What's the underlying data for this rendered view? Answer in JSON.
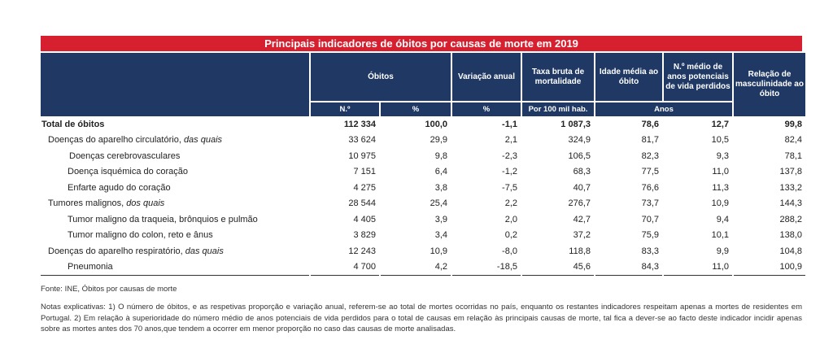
{
  "title": "Principais indicadores de óbitos por causas de morte em 2019",
  "headers": {
    "obitos": "Óbitos",
    "variacao": "Variação anual",
    "taxa": "Taxa bruta de mortalidade",
    "idade": "Idade média ao óbito",
    "anos": "N.º médio de anos potenciais de vida perdidos",
    "relacao": "Relação de masculinidade ao óbito"
  },
  "subheaders": {
    "n": "N.º",
    "pct1": "%",
    "pct2": "%",
    "per100": "Por 100 mil hab.",
    "anos": "Anos"
  },
  "rows": [
    {
      "label": "Total de óbitos",
      "italic": "",
      "n": "112 334",
      "pct": "100,0",
      "var": "-1,1",
      "taxa": "1 087,3",
      "idade": "78,6",
      "anos": "12,7",
      "rel": "99,8"
    },
    {
      "label": "Doenças do aparelho circulatório, ",
      "italic": "das quais",
      "n": "33 624",
      "pct": "29,9",
      "var": "2,1",
      "taxa": "324,9",
      "idade": "81,7",
      "anos": "10,5",
      "rel": "82,4"
    },
    {
      "label": "Doenças cerebrovasculares",
      "italic": "",
      "n": "10 975",
      "pct": "9,8",
      "var": "-2,3",
      "taxa": "106,5",
      "idade": "82,3",
      "anos": "9,3",
      "rel": "78,1"
    },
    {
      "label": "Doença isquémica do coração",
      "italic": "",
      "n": "7 151",
      "pct": "6,4",
      "var": "-1,2",
      "taxa": "68,3",
      "idade": "77,5",
      "anos": "11,0",
      "rel": "137,8"
    },
    {
      "label": "Enfarte agudo do coração",
      "italic": "",
      "n": "4 275",
      "pct": "3,8",
      "var": "-7,5",
      "taxa": "40,7",
      "idade": "76,6",
      "anos": "11,3",
      "rel": "133,2"
    },
    {
      "label": "Tumores malignos, ",
      "italic": "dos quais",
      "n": "28 544",
      "pct": "25,4",
      "var": "2,2",
      "taxa": "276,7",
      "idade": "73,7",
      "anos": "10,9",
      "rel": "144,3"
    },
    {
      "label": "Tumor maligno da traqueia, brônquios e pulmão",
      "italic": "",
      "n": "4 405",
      "pct": "3,9",
      "var": "2,0",
      "taxa": "42,7",
      "idade": "70,7",
      "anos": "9,4",
      "rel": "288,2"
    },
    {
      "label": "Tumor maligno do colon, reto e ânus",
      "italic": "",
      "n": "3 829",
      "pct": "3,4",
      "var": "0,2",
      "taxa": "37,2",
      "idade": "75,9",
      "anos": "10,1",
      "rel": "138,0"
    },
    {
      "label": "Doenças do aparelho respiratório, ",
      "italic": "das quais",
      "n": "12 243",
      "pct": "10,9",
      "var": "-8,0",
      "taxa": "118,8",
      "idade": "83,3",
      "anos": "9,9",
      "rel": "104,8"
    },
    {
      "label": "Pneumonia",
      "italic": "",
      "n": "4 700",
      "pct": "4,2",
      "var": "-18,5",
      "taxa": "45,6",
      "idade": "84,3",
      "anos": "11,0",
      "rel": "100,9"
    }
  ],
  "source": "Fonte: INE, Óbitos por causas de morte",
  "notes": "Notas explicativas: 1) O número de óbitos, e as respetivas proporção e variação anual, referem-se ao total de mortes ocorridas no país, enquanto os restantes indicadores respeitam apenas a mortes de residentes em Portugal. 2) Em relação à superioridade do número médio de anos potenciais de vida perdidos para o total de causas em relação às principais causas de morte, tal fica a dever-se ao facto deste indicador incidir apenas sobre as mortes antes dos 70 anos,que tendem a ocorrer em menor proporção no caso das causas de morte analisadas."
}
